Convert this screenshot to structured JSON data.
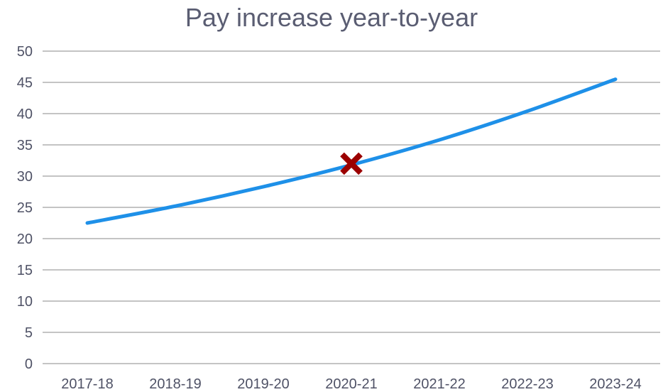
{
  "chart_data": {
    "type": "line",
    "title": "Pay increase year-to-year",
    "xlabel": "",
    "ylabel": "",
    "categories": [
      "2017-18",
      "2018-19",
      "2019-20",
      "2020-21",
      "2021-22",
      "2022-23",
      "2023-24"
    ],
    "series": [
      {
        "values": [
          22.5,
          25.2,
          28.3,
          31.8,
          35.8,
          40.4,
          45.5
        ],
        "color": "#1e90e8"
      }
    ],
    "marker": {
      "category": "2020-21",
      "value": 32,
      "symbol": "x",
      "color": "#9b0000"
    },
    "yticks": [
      "0",
      "5",
      "10",
      "15",
      "20",
      "25",
      "30",
      "35",
      "40",
      "45",
      "50"
    ],
    "ylim": [
      0,
      50
    ],
    "grid": true,
    "legend": "none"
  }
}
